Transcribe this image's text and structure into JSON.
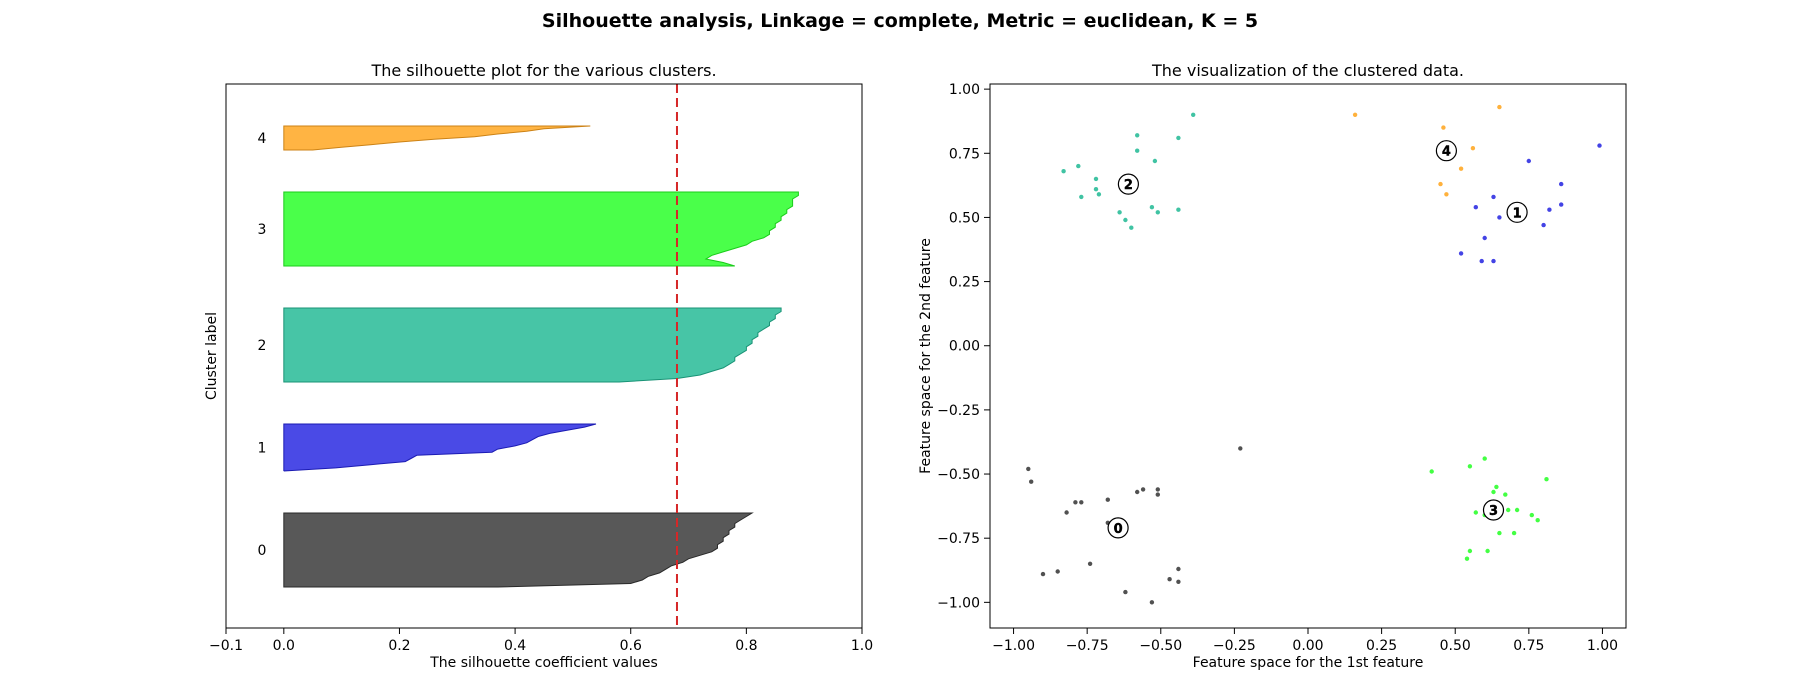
{
  "figure": {
    "suptitle": "Silhouette analysis, Linkage = complete, Metric = euclidean, K = 5"
  },
  "chart_data": [
    {
      "type": "area",
      "title": "The silhouette plot for the various clusters.",
      "xlabel": "The silhouette coefficient values",
      "ylabel": "Cluster label",
      "xlim": [
        -0.1,
        1.0
      ],
      "xticks": [
        "-0.1",
        "0.0",
        "0.2",
        "0.4",
        "0.6",
        "0.8",
        "1.0"
      ],
      "average_silhouette": 0.68,
      "average_line_color": "#d62728",
      "clusters": [
        {
          "label": "0",
          "color": "#333333",
          "values": [
            0.81,
            0.8,
            0.79,
            0.78,
            0.78,
            0.77,
            0.77,
            0.76,
            0.76,
            0.75,
            0.75,
            0.74,
            0.72,
            0.7,
            0.69,
            0.67,
            0.66,
            0.65,
            0.63,
            0.62,
            0.6,
            0.37
          ]
        },
        {
          "label": "1",
          "color": "#2222e0",
          "values": [
            0.54,
            0.52,
            0.49,
            0.46,
            0.44,
            0.43,
            0.42,
            0.4,
            0.37,
            0.36,
            0.23,
            0.22,
            0.21,
            0.15,
            0.09,
            0.0
          ]
        },
        {
          "label": "2",
          "color": "#1fb893",
          "values": [
            0.86,
            0.86,
            0.85,
            0.85,
            0.84,
            0.84,
            0.83,
            0.82,
            0.82,
            0.81,
            0.81,
            0.8,
            0.8,
            0.79,
            0.78,
            0.78,
            0.77,
            0.76,
            0.74,
            0.72,
            0.68,
            0.58
          ]
        },
        {
          "label": "3",
          "color": "#22ff22",
          "values": [
            0.89,
            0.89,
            0.88,
            0.88,
            0.88,
            0.87,
            0.87,
            0.86,
            0.86,
            0.85,
            0.85,
            0.84,
            0.84,
            0.83,
            0.81,
            0.8,
            0.78,
            0.76,
            0.74,
            0.73,
            0.76,
            0.78
          ]
        },
        {
          "label": "4",
          "color": "#ffa31a",
          "values": [
            0.53,
            0.45,
            0.42,
            0.37,
            0.33,
            0.26,
            0.2,
            0.15,
            0.1,
            0.05
          ]
        }
      ]
    },
    {
      "type": "scatter",
      "title": "The visualization of the clustered data.",
      "xlabel": "Feature space for the 1st feature",
      "ylabel": "Feature space for the 2nd feature",
      "xlim": [
        -1.08,
        1.08
      ],
      "ylim": [
        -1.1,
        1.02
      ],
      "xticks": [
        "-1.00",
        "-0.75",
        "-0.50",
        "-0.25",
        "0.00",
        "0.25",
        "0.50",
        "0.75",
        "1.00"
      ],
      "yticks": [
        "-1.00",
        "-0.75",
        "-0.50",
        "-0.25",
        "0.00",
        "0.25",
        "0.50",
        "0.75",
        "1.00"
      ],
      "series": [
        {
          "cluster": "0",
          "color": "#333333",
          "center": [
            -0.645,
            -0.71
          ],
          "points": [
            [
              -0.95,
              -0.48
            ],
            [
              -0.94,
              -0.53
            ],
            [
              -0.82,
              -0.65
            ],
            [
              -0.79,
              -0.61
            ],
            [
              -0.77,
              -0.61
            ],
            [
              -0.68,
              -0.6
            ],
            [
              -0.68,
              -0.69
            ],
            [
              -0.58,
              -0.57
            ],
            [
              -0.56,
              -0.56
            ],
            [
              -0.51,
              -0.56
            ],
            [
              -0.51,
              -0.58
            ],
            [
              -0.23,
              -0.4
            ],
            [
              -0.9,
              -0.89
            ],
            [
              -0.85,
              -0.88
            ],
            [
              -0.74,
              -0.85
            ],
            [
              -0.62,
              -0.96
            ],
            [
              -0.53,
              -1.0
            ],
            [
              -0.47,
              -0.91
            ],
            [
              -0.44,
              -0.87
            ],
            [
              -0.44,
              -0.92
            ]
          ]
        },
        {
          "cluster": "1",
          "color": "#2222e0",
          "center": [
            0.71,
            0.52
          ],
          "points": [
            [
              0.99,
              0.78
            ],
            [
              0.75,
              0.72
            ],
            [
              0.86,
              0.63
            ],
            [
              0.63,
              0.58
            ],
            [
              0.57,
              0.54
            ],
            [
              0.65,
              0.5
            ],
            [
              0.82,
              0.53
            ],
            [
              0.86,
              0.55
            ],
            [
              0.8,
              0.47
            ],
            [
              0.6,
              0.42
            ],
            [
              0.52,
              0.36
            ],
            [
              0.59,
              0.33
            ],
            [
              0.63,
              0.33
            ]
          ]
        },
        {
          "cluster": "2",
          "color": "#1fb893",
          "center": [
            -0.61,
            0.63
          ],
          "points": [
            [
              -0.39,
              0.9
            ],
            [
              -0.58,
              0.82
            ],
            [
              -0.44,
              0.81
            ],
            [
              -0.58,
              0.76
            ],
            [
              -0.52,
              0.72
            ],
            [
              -0.78,
              0.7
            ],
            [
              -0.83,
              0.68
            ],
            [
              -0.72,
              0.65
            ],
            [
              -0.72,
              0.61
            ],
            [
              -0.71,
              0.59
            ],
            [
              -0.77,
              0.58
            ],
            [
              -0.64,
              0.52
            ],
            [
              -0.62,
              0.49
            ],
            [
              -0.6,
              0.46
            ],
            [
              -0.53,
              0.54
            ],
            [
              -0.51,
              0.52
            ],
            [
              -0.44,
              0.53
            ]
          ]
        },
        {
          "cluster": "3",
          "color": "#22ff22",
          "center": [
            0.63,
            -0.64
          ],
          "points": [
            [
              0.42,
              -0.49
            ],
            [
              0.55,
              -0.47
            ],
            [
              0.6,
              -0.44
            ],
            [
              0.81,
              -0.52
            ],
            [
              0.64,
              -0.55
            ],
            [
              0.63,
              -0.57
            ],
            [
              0.67,
              -0.58
            ],
            [
              0.57,
              -0.65
            ],
            [
              0.6,
              -0.66
            ],
            [
              0.68,
              -0.64
            ],
            [
              0.71,
              -0.64
            ],
            [
              0.76,
              -0.66
            ],
            [
              0.78,
              -0.68
            ],
            [
              0.65,
              -0.73
            ],
            [
              0.7,
              -0.73
            ],
            [
              0.55,
              -0.8
            ],
            [
              0.54,
              -0.83
            ],
            [
              0.61,
              -0.8
            ]
          ]
        },
        {
          "cluster": "4",
          "color": "#ffa31a",
          "center": [
            0.47,
            0.76
          ],
          "points": [
            [
              0.16,
              0.9
            ],
            [
              0.65,
              0.93
            ],
            [
              0.46,
              0.85
            ],
            [
              0.56,
              0.77
            ],
            [
              0.52,
              0.69
            ],
            [
              0.45,
              0.63
            ],
            [
              0.47,
              0.59
            ]
          ]
        }
      ]
    }
  ]
}
